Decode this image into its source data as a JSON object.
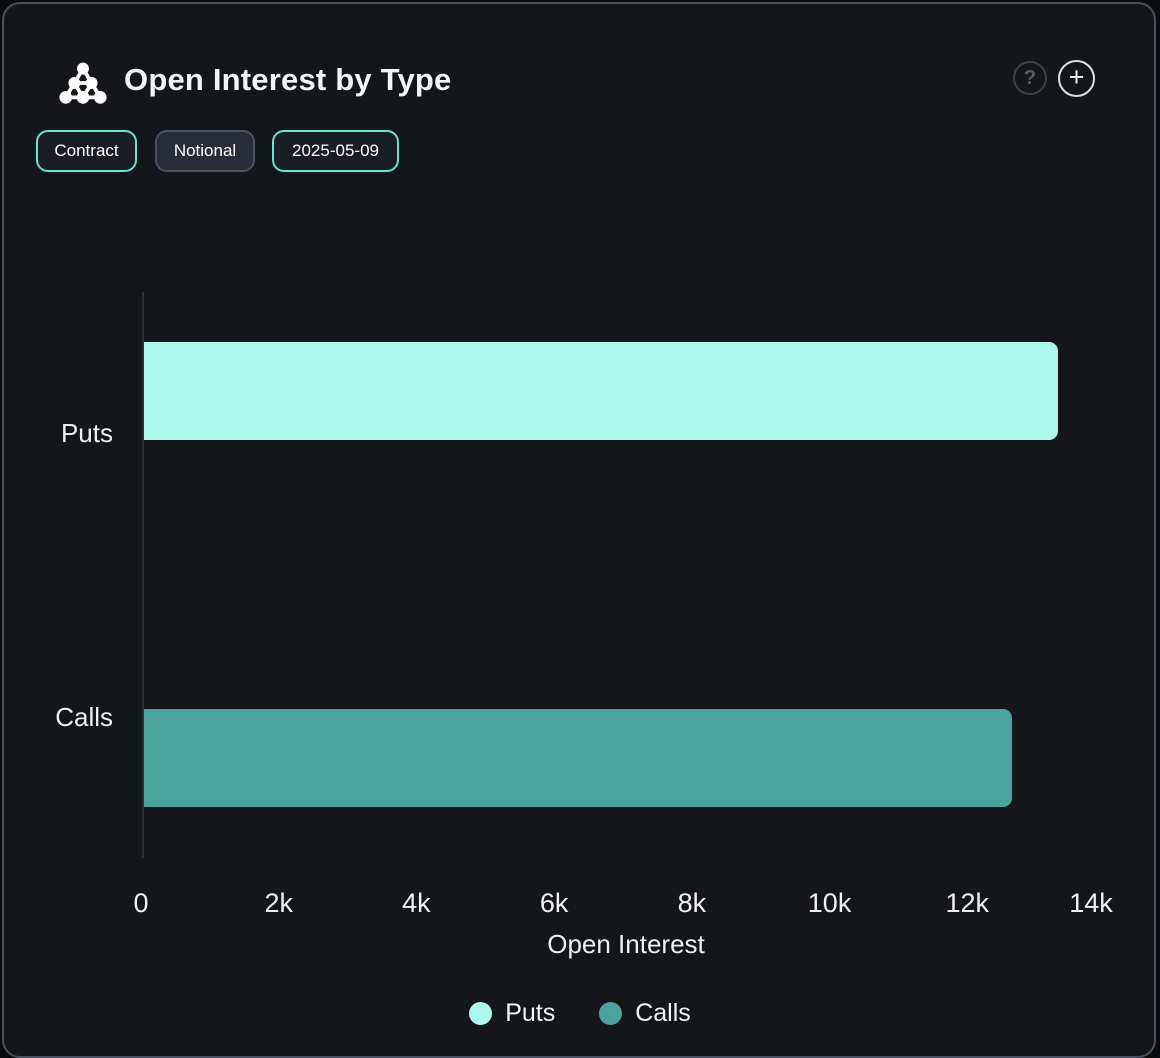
{
  "header": {
    "title": "Open Interest by Type",
    "logo_icon": "dots-pyramid-logo",
    "help_glyph": "?",
    "add_glyph": "+"
  },
  "controls": [
    {
      "label": "Contract",
      "selected": true
    },
    {
      "label": "Notional",
      "selected": false
    },
    {
      "label": "2025-05-09",
      "selected": true
    }
  ],
  "chart_data": {
    "type": "bar",
    "orientation": "horizontal",
    "title": "Open Interest by Type",
    "categories": [
      "Puts",
      "Calls"
    ],
    "values": [
      13280,
      12600
    ],
    "colors": [
      "#adf8ec",
      "#4aa39c"
    ],
    "xlabel": "Open Interest",
    "ylabel": "",
    "xlim": [
      0,
      14000
    ],
    "xticks": [
      0,
      2000,
      4000,
      6000,
      8000,
      10000,
      12000,
      14000
    ],
    "xtick_labels": [
      "0",
      "2k",
      "4k",
      "6k",
      "8k",
      "10k",
      "12k",
      "14k"
    ],
    "grid": false,
    "legend_position": "bottom",
    "legend": [
      {
        "label": "Puts",
        "color": "#adf8ec"
      },
      {
        "label": "Calls",
        "color": "#4aa39c"
      }
    ]
  },
  "appearance": {
    "card_background": "#15161a",
    "card_border": "#4a5060",
    "accent_teal": "#62e6cd",
    "unselected_button_bg": "#272c38",
    "axis_line": "#2d3036"
  }
}
